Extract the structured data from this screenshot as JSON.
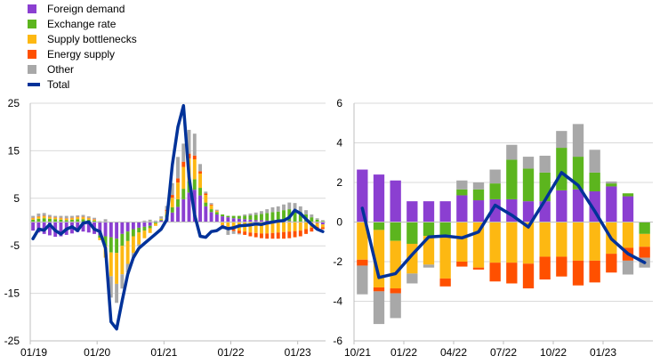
{
  "legend": [
    {
      "name": "Foreign demand",
      "color": "#8b3fd1",
      "kind": "bar"
    },
    {
      "name": "Exchange rate",
      "color": "#5cb51e",
      "kind": "bar"
    },
    {
      "name": "Supply bottlenecks",
      "color": "#fdb812",
      "kind": "bar"
    },
    {
      "name": "Energy supply",
      "color": "#ff5000",
      "kind": "bar"
    },
    {
      "name": "Other",
      "color": "#a8a8a8",
      "kind": "bar"
    },
    {
      "name": "Total",
      "color": "#003299",
      "kind": "line"
    }
  ],
  "chart_data": [
    {
      "type": "bar",
      "stacked": true,
      "ylim": [
        -25,
        25
      ],
      "yticks": [
        -25,
        -15,
        -5,
        5,
        15,
        25
      ],
      "x_tick_labels": [
        "01/19",
        "01/20",
        "01/21",
        "01/22",
        "01/23"
      ],
      "x_tick_index": [
        0,
        12,
        24,
        36,
        48
      ],
      "n_periods": 53,
      "series": [
        {
          "name": "Foreign demand",
          "color": "#8b3fd1",
          "values": [
            -1.8,
            -2.2,
            -2.5,
            -2.8,
            -3.1,
            -3.0,
            -2.7,
            -2.4,
            -2.1,
            -2.0,
            -2.2,
            -2.5,
            -2.8,
            -3.0,
            -3.2,
            -3.5,
            -2.5,
            -2.0,
            -1.5,
            -1.2,
            -1.0,
            -0.8,
            0.0,
            0.3,
            0.9,
            2.0,
            3.2,
            4.8,
            6.2,
            6.8,
            5.6,
            3.3,
            2.1,
            1.6,
            1.2,
            1.0,
            0.8,
            0.7,
            0.6,
            0.5,
            0.4,
            0.4,
            0.3,
            0.3,
            0.2,
            0.2,
            0.2,
            0.1,
            0.1,
            0.1,
            0.0,
            -0.2,
            -0.5
          ]
        },
        {
          "name": "Exchange rate",
          "color": "#5cb51e",
          "values": [
            0.5,
            0.7,
            0.8,
            0.7,
            0.6,
            0.5,
            0.4,
            0.5,
            0.6,
            0.6,
            0.5,
            0.3,
            -0.5,
            -2.0,
            -3.2,
            -3.0,
            -2.5,
            -2.0,
            -1.5,
            -1.0,
            -0.8,
            -0.5,
            -0.3,
            0.2,
            0.6,
            1.1,
            1.6,
            2.2,
            2.4,
            2.2,
            1.6,
            0.8,
            0.6,
            0.5,
            0.4,
            0.3,
            0.5,
            0.6,
            0.7,
            0.9,
            1.1,
            1.3,
            1.6,
            1.8,
            2.0,
            2.3,
            2.5,
            2.4,
            2.0,
            1.5,
            1.0,
            0.5,
            0.2
          ]
        },
        {
          "name": "Supply bottlenecks",
          "color": "#fdb812",
          "values": [
            0.3,
            0.4,
            0.4,
            0.3,
            0.3,
            0.3,
            0.3,
            0.3,
            0.4,
            0.4,
            0.3,
            0.2,
            -0.5,
            -2.5,
            -5.0,
            -6.5,
            -6.0,
            -4.8,
            -3.5,
            -2.5,
            -1.6,
            -1.0,
            -0.5,
            0.2,
            0.8,
            2.0,
            3.5,
            4.6,
            4.8,
            4.2,
            3.0,
            1.6,
            0.8,
            0.2,
            -0.6,
            -1.0,
            -1.5,
            -1.8,
            -2.0,
            -2.2,
            -2.3,
            -2.4,
            -2.4,
            -2.3,
            -2.2,
            -2.1,
            -2.0,
            -1.9,
            -1.8,
            -1.5,
            -1.2,
            -0.8,
            -0.6
          ]
        },
        {
          "name": "Energy supply",
          "color": "#ff5000",
          "values": [
            0.1,
            0.1,
            0.1,
            0.1,
            0.1,
            0.1,
            0.1,
            0.1,
            0.1,
            0.1,
            0.1,
            0.1,
            0.0,
            0.0,
            0.0,
            0.0,
            0.0,
            0.0,
            0.0,
            0.0,
            0.0,
            0.0,
            0.0,
            0.0,
            0.3,
            0.6,
            0.9,
            1.1,
            1.0,
            0.8,
            0.5,
            0.3,
            0.2,
            0.1,
            -0.1,
            -0.2,
            -0.4,
            -0.6,
            -0.7,
            -0.8,
            -0.9,
            -1.0,
            -1.1,
            -1.2,
            -1.3,
            -1.4,
            -1.4,
            -1.3,
            -1.2,
            -1.0,
            -0.8,
            -0.6,
            -0.4
          ]
        },
        {
          "name": "Other",
          "color": "#a8a8a8",
          "values": [
            0.4,
            0.6,
            0.6,
            0.4,
            0.3,
            0.4,
            0.5,
            0.4,
            0.3,
            0.4,
            0.3,
            0.3,
            0.2,
            0.6,
            -4.5,
            -4.0,
            -3.0,
            -1.8,
            -0.8,
            -0.4,
            0.3,
            0.5,
            0.3,
            0.5,
            0.8,
            2.5,
            4.5,
            3.8,
            5.0,
            4.6,
            1.5,
            0.4,
            0.3,
            0.2,
            -0.8,
            -1.5,
            -0.6,
            -0.2,
            0.3,
            0.4,
            0.5,
            0.6,
            0.8,
            1.0,
            1.1,
            1.2,
            1.4,
            1.5,
            1.2,
            0.9,
            0.6,
            0.3,
            0.2
          ]
        },
        {
          "name": "Total",
          "color": "#003299",
          "kind": "line",
          "values": [
            -3.5,
            -1.5,
            -1.7,
            -0.5,
            -1.8,
            -2.5,
            -1.5,
            -1.0,
            -1.8,
            -0.2,
            0.0,
            -1.5,
            -2.0,
            -5.5,
            -21.0,
            -22.5,
            -16.5,
            -11.0,
            -7.5,
            -5.5,
            -4.5,
            -3.5,
            -2.5,
            -1.5,
            0.5,
            12.0,
            20.0,
            24.5,
            9.5,
            1.5,
            -3.0,
            -3.2,
            -2.0,
            -1.8,
            -1.0,
            -1.4,
            -1.2,
            -0.8,
            -0.7,
            -0.6,
            -0.4,
            -0.5,
            -0.2,
            0.0,
            0.2,
            0.3,
            1.0,
            2.5,
            1.8,
            0.6,
            -0.5,
            -1.5,
            -2.0
          ]
        }
      ]
    },
    {
      "type": "bar",
      "stacked": true,
      "ylim": [
        -6,
        6
      ],
      "yticks": [
        -6,
        -4,
        -2,
        0,
        2,
        4,
        6
      ],
      "x_tick_labels": [
        "10/21",
        "01/22",
        "04/22",
        "07/22",
        "10/22",
        "01/23"
      ],
      "x_tick_index": [
        0,
        3,
        6,
        9,
        12,
        15
      ],
      "n_periods": 18,
      "series": [
        {
          "name": "Foreign demand",
          "color": "#8b3fd1",
          "values": [
            2.65,
            2.4,
            2.1,
            1.05,
            1.05,
            1.05,
            1.35,
            1.1,
            1.15,
            1.15,
            1.05,
            1.05,
            1.6,
            1.65,
            1.55,
            1.8,
            1.3,
            0.0
          ]
        },
        {
          "name": "Exchange rate",
          "color": "#5cb51e",
          "values": [
            0.0,
            -0.4,
            -0.95,
            -1.1,
            -0.7,
            -0.7,
            0.3,
            0.55,
            0.8,
            2.0,
            1.65,
            1.45,
            2.15,
            1.65,
            0.95,
            0.15,
            0.15,
            -0.6
          ]
        },
        {
          "name": "Supply bottlenecks",
          "color": "#fdb812",
          "values": [
            -1.9,
            -2.9,
            -2.4,
            -1.5,
            -1.45,
            -2.15,
            -2.0,
            -2.3,
            -2.05,
            -2.05,
            -2.1,
            -1.75,
            -1.75,
            -1.95,
            -1.95,
            -1.6,
            -1.3,
            -0.65
          ]
        },
        {
          "name": "Energy supply",
          "color": "#ff5000",
          "values": [
            -0.3,
            -0.2,
            -0.25,
            0.0,
            0.0,
            -0.4,
            -0.25,
            -0.1,
            -0.95,
            -1.05,
            -1.25,
            -1.15,
            -1.0,
            -1.25,
            -1.1,
            -0.95,
            -0.65,
            -0.55
          ]
        },
        {
          "name": "Other",
          "color": "#a8a8a8",
          "values": [
            -1.45,
            -1.65,
            -1.25,
            -0.5,
            -0.15,
            0.0,
            0.45,
            0.35,
            0.7,
            0.75,
            0.6,
            0.85,
            0.85,
            1.65,
            1.15,
            0.1,
            -0.7,
            -0.5
          ]
        },
        {
          "name": "Total",
          "color": "#003299",
          "kind": "line",
          "values": [
            0.7,
            -2.8,
            -2.6,
            -1.65,
            -0.75,
            -0.7,
            -0.8,
            -0.5,
            0.85,
            0.35,
            -0.25,
            1.1,
            2.5,
            1.85,
            0.55,
            -0.85,
            -1.6,
            -2.05
          ]
        }
      ]
    }
  ]
}
